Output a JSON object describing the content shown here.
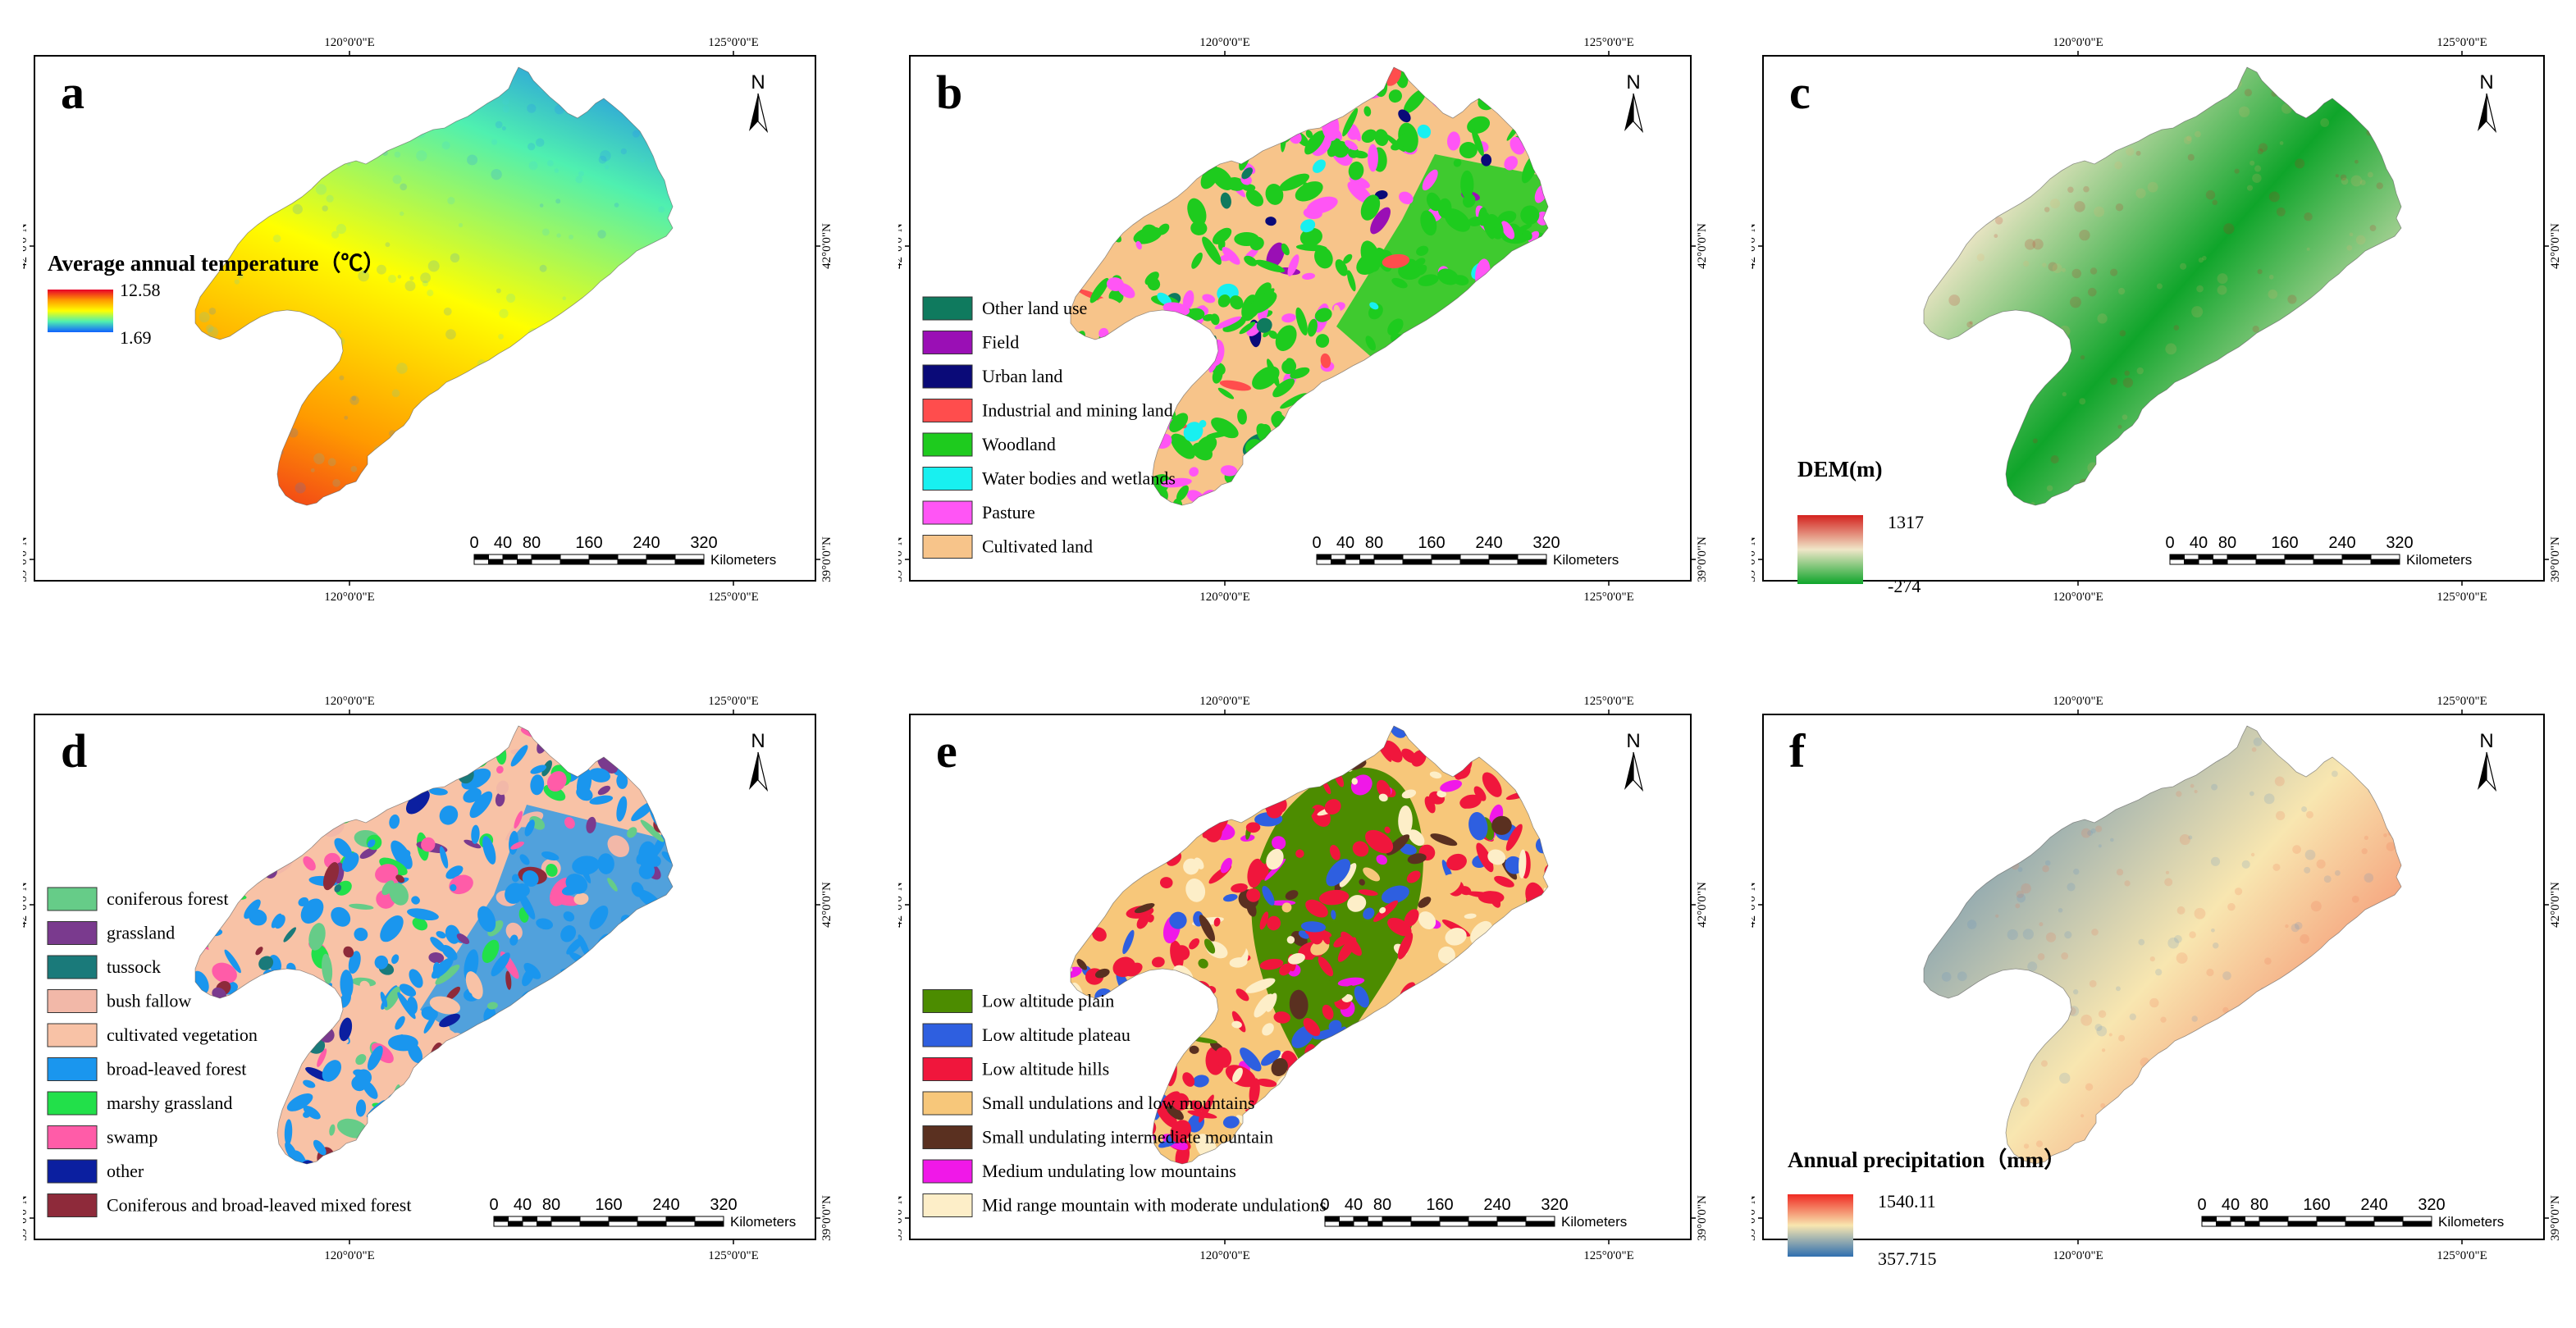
{
  "coords": {
    "top_lon": [
      "120°0'0\"E",
      "125°0'0\"E"
    ],
    "bottom_lon": [
      "120°0'0\"E",
      "125°0'0\"E"
    ],
    "lat": [
      "42°0'0\"N",
      "39°0'0\"N"
    ]
  },
  "north": "N",
  "scalebar": {
    "ticks": [
      "0",
      "40",
      "80",
      "160",
      "240",
      "320"
    ],
    "unit": "Kilometers"
  },
  "panels": [
    {
      "id": "a",
      "letter": "a",
      "legend": {
        "type": "gradient",
        "title": "Average annual temperature（℃）",
        "max": "12.58",
        "min": "1.69",
        "colors": [
          "#e8002a",
          "#ff9a00",
          "#ffff00",
          "#4ff0b0",
          "#1060ff"
        ]
      }
    },
    {
      "id": "b",
      "letter": "b",
      "legend": {
        "type": "categorical",
        "items": [
          {
            "label": "Other land use",
            "color": "#0f7a5e"
          },
          {
            "label": "Field",
            "color": "#9a0fb5"
          },
          {
            "label": "Urban land",
            "color": "#0a0a78"
          },
          {
            "label": "Industrial and mining land",
            "color": "#ff4d4d"
          },
          {
            "label": "Woodland",
            "color": "#1ecb1e"
          },
          {
            "label": "Water bodies and wetlands",
            "color": "#18f0f0"
          },
          {
            "label": "Pasture",
            "color": "#ff55f5"
          },
          {
            "label": "Cultivated land",
            "color": "#f7c48a"
          }
        ]
      }
    },
    {
      "id": "c",
      "letter": "c",
      "legend": {
        "type": "gradient",
        "title": "DEM(m)",
        "max": "1317",
        "min": "-274",
        "colors": [
          "#d4211e",
          "#f0e6c8",
          "#0fa52a"
        ]
      }
    },
    {
      "id": "d",
      "letter": "d",
      "legend": {
        "type": "categorical",
        "items": [
          {
            "label": "coniferous forest",
            "color": "#66cc88"
          },
          {
            "label": "grassland",
            "color": "#7a3a8e"
          },
          {
            "label": "tussock",
            "color": "#1a7a7a"
          },
          {
            "label": "bush fallow",
            "color": "#f2b8a8"
          },
          {
            "label": "cultivated vegetation",
            "color": "#f8c2a6"
          },
          {
            "label": "broad-leaved forest",
            "color": "#1a96ee"
          },
          {
            "label": "marshy grassland",
            "color": "#22e04a"
          },
          {
            "label": "swamp",
            "color": "#ff5ca8"
          },
          {
            "label": "other",
            "color": "#0b1fa0"
          },
          {
            "label": "Coniferous and broad-leaved mixed forest",
            "color": "#8e2a3a"
          }
        ]
      }
    },
    {
      "id": "e",
      "letter": "e",
      "legend": {
        "type": "categorical",
        "items": [
          {
            "label": "Low altitude plain",
            "color": "#4c8c00"
          },
          {
            "label": "Low altitude plateau",
            "color": "#2e5fe0"
          },
          {
            "label": "Low altitude hills",
            "color": "#f0163c"
          },
          {
            "label": "Small undulations and low mountains",
            "color": "#f7c77a"
          },
          {
            "label": "Small undulating intermediate mountain",
            "color": "#5a3020"
          },
          {
            "label": "Medium undulating low mountains",
            "color": "#f018e8"
          },
          {
            "label": "Mid range mountain with moderate undulations",
            "color": "#fdeec8"
          }
        ]
      }
    },
    {
      "id": "f",
      "letter": "f",
      "legend": {
        "type": "gradient",
        "title": "Annual precipitation（mm）",
        "max": "1540.11",
        "min": "357.715",
        "colors": [
          "#f02a22",
          "#f8e6b0",
          "#2f6fb0"
        ]
      }
    }
  ]
}
